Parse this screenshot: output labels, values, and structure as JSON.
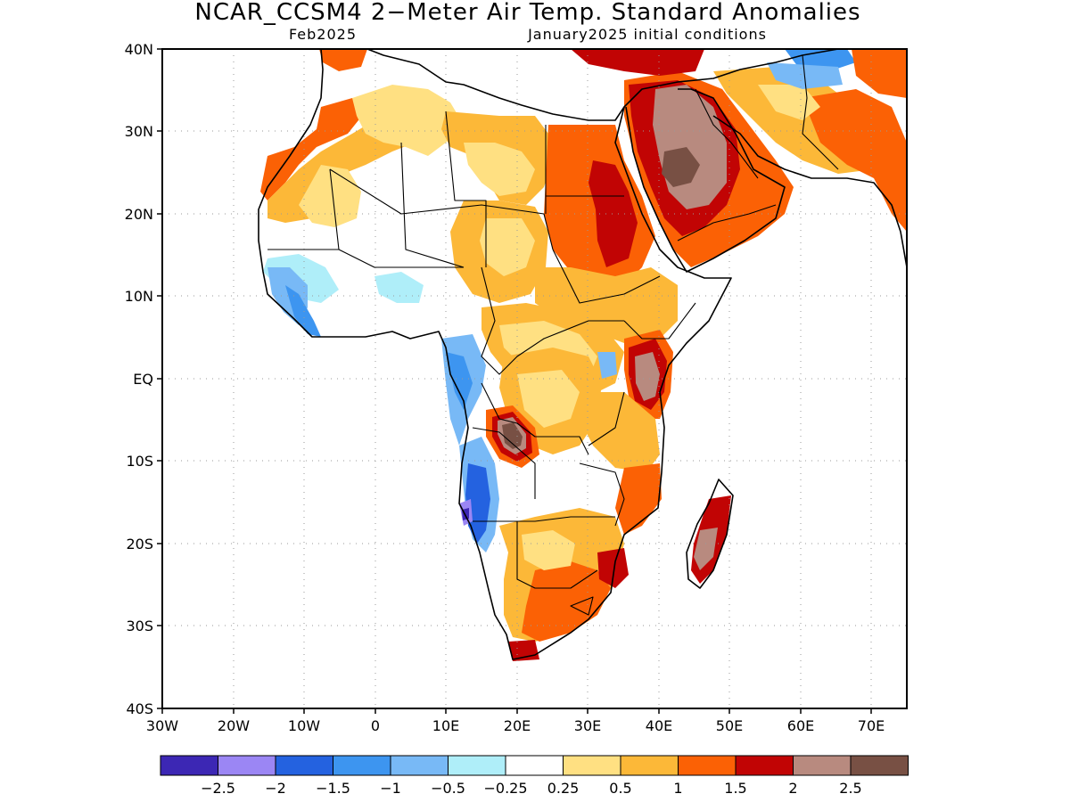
{
  "title": "NCAR_CCSM4 2−Meter Air Temp. Standard Anomalies",
  "subtitle_left": "Feb2025",
  "subtitle_right": "January2025 initial conditions",
  "map": {
    "region": "Africa",
    "lat_range": [
      -40,
      40
    ],
    "lon_range": [
      -30,
      75
    ],
    "lat_ticks": [
      "40N",
      "30N",
      "20N",
      "10N",
      "EQ",
      "10S",
      "20S",
      "30S",
      "40S"
    ],
    "lon_ticks": [
      "30W",
      "20W",
      "10W",
      "0",
      "10E",
      "20E",
      "30E",
      "40E",
      "50E",
      "60E",
      "70E"
    ]
  },
  "colors": {
    "c1": "#3c27b4",
    "c2": "#9b86f4",
    "c3": "#2462e0",
    "c4": "#3d95f0",
    "c5": "#78b9f6",
    "c6": "#afeef9",
    "c7": "#ffffff",
    "c8": "#ffe082",
    "c9": "#fcb838",
    "c10": "#fb6105",
    "c11": "#c10404",
    "c12": "#b88a7f",
    "c13": "#785044"
  },
  "colorbar": {
    "labels": [
      "−2.5",
      "−2",
      "−1.5",
      "−1",
      "−0.5",
      "−0.25",
      "0.25",
      "0.5",
      "1",
      "1.5",
      "2",
      "2.5"
    ]
  }
}
